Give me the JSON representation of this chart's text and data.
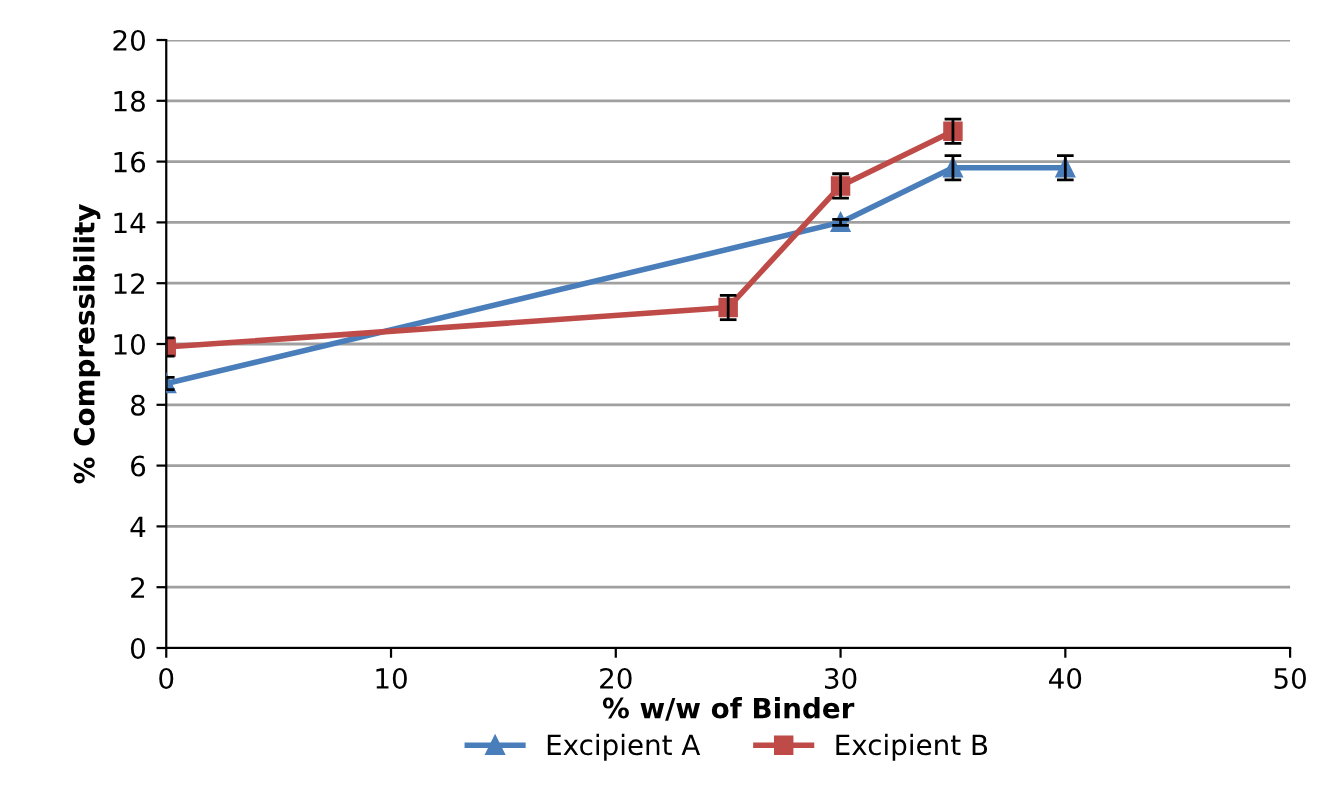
{
  "chart_data": {
    "type": "line",
    "xlabel": "% w/w of Binder",
    "ylabel": "% Compressibility",
    "xlim": [
      0,
      50
    ],
    "xticks": [
      0,
      10,
      20,
      30,
      40,
      50
    ],
    "ylim": [
      0,
      20
    ],
    "yticks": [
      0,
      2,
      4,
      6,
      8,
      10,
      12,
      14,
      16,
      18,
      20
    ],
    "grid": "y",
    "legend": "bottom",
    "series": [
      {
        "name": "Excipient A",
        "color": "#4a7ebb",
        "marker": "triangle",
        "x": [
          0,
          30,
          35,
          40
        ],
        "values": [
          8.7,
          14.0,
          15.8,
          15.8
        ],
        "errors": [
          0.2,
          0.1,
          0.4,
          0.4
        ]
      },
      {
        "name": "Excipient B",
        "color": "#be4b48",
        "marker": "square",
        "x": [
          0,
          25,
          30,
          35
        ],
        "values": [
          9.9,
          11.2,
          15.2,
          17.0
        ],
        "errors": [
          0.3,
          0.4,
          0.4,
          0.4
        ]
      }
    ]
  }
}
